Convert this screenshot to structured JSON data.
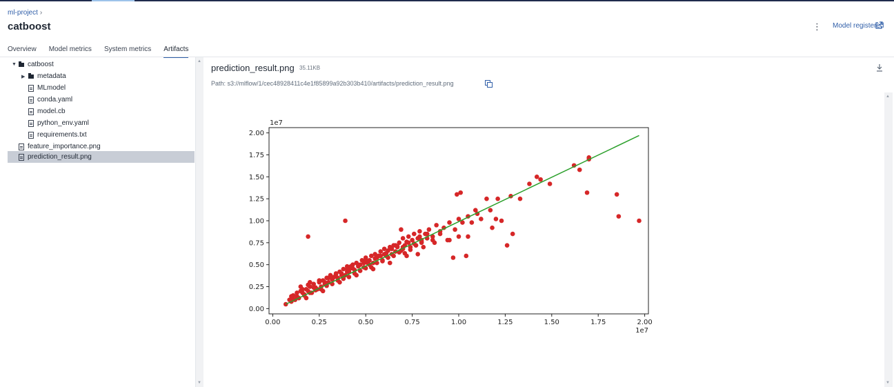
{
  "breadcrumb": {
    "project": "ml-project",
    "chevron": "›"
  },
  "page": {
    "title": "catboost"
  },
  "header": {
    "kebab": "⋮",
    "model_registered": "Model registered"
  },
  "tabs": [
    {
      "label": "Overview"
    },
    {
      "label": "Model metrics"
    },
    {
      "label": "System metrics"
    },
    {
      "label": "Artifacts",
      "active": true
    }
  ],
  "tree": {
    "root": "catboost",
    "metadata": "metadata",
    "files": [
      "MLmodel",
      "conda.yaml",
      "model.cb",
      "python_env.yaml",
      "requirements.txt"
    ],
    "top_files": [
      "feature_importance.png",
      "prediction_result.png"
    ],
    "selected": "prediction_result.png"
  },
  "viewer": {
    "file_name": "prediction_result.png",
    "file_size": "35.11KB",
    "path": "Path: s3://mlflow/1/cec48928411c4e1f85899a92b303b410/artifacts/prediction_result.png"
  },
  "colors": {
    "accent": "#2f5ea8",
    "point": "#d62728",
    "line": "#2ca02c"
  },
  "chart_data": {
    "type": "scatter",
    "title": "",
    "xlabel": "",
    "ylabel": "",
    "x_offset_label": "1e7",
    "y_offset_label": "1e7",
    "xlim": [
      -0.02,
      2.02
    ],
    "ylim": [
      -0.06,
      2.06
    ],
    "xticks": [
      "0.00",
      "0.25",
      "0.50",
      "0.75",
      "1.00",
      "1.25",
      "1.50",
      "1.75",
      "2.00"
    ],
    "yticks": [
      "0.00",
      "0.25",
      "0.50",
      "0.75",
      "1.00",
      "1.25",
      "1.50",
      "1.75",
      "2.00"
    ],
    "line": {
      "x": [
        0.07,
        1.97
      ],
      "y": [
        0.05,
        1.97
      ]
    },
    "points": {
      "x": [
        0.07,
        0.09,
        0.1,
        0.11,
        0.12,
        0.13,
        0.14,
        0.15,
        0.16,
        0.17,
        0.18,
        0.19,
        0.2,
        0.21,
        0.22,
        0.23,
        0.24,
        0.25,
        0.26,
        0.27,
        0.28,
        0.29,
        0.3,
        0.31,
        0.32,
        0.33,
        0.34,
        0.35,
        0.36,
        0.37,
        0.38,
        0.39,
        0.4,
        0.41,
        0.42,
        0.43,
        0.44,
        0.45,
        0.46,
        0.47,
        0.48,
        0.49,
        0.5,
        0.51,
        0.52,
        0.53,
        0.54,
        0.55,
        0.56,
        0.57,
        0.58,
        0.59,
        0.6,
        0.61,
        0.62,
        0.63,
        0.64,
        0.65,
        0.66,
        0.67,
        0.68,
        0.69,
        0.7,
        0.71,
        0.72,
        0.73,
        0.74,
        0.75,
        0.76,
        0.77,
        0.78,
        0.79,
        0.8,
        0.82,
        0.84,
        0.86,
        0.88,
        0.9,
        0.92,
        0.95,
        0.98,
        1.0,
        1.02,
        1.05,
        0.1,
        0.13,
        0.16,
        0.19,
        0.22,
        0.25,
        0.28,
        0.31,
        0.34,
        0.37,
        0.4,
        0.43,
        0.46,
        0.49,
        0.52,
        0.55,
        0.58,
        0.61,
        0.64,
        0.67,
        0.7,
        0.73,
        0.76,
        0.79,
        0.11,
        0.14,
        0.17,
        0.2,
        0.23,
        0.26,
        0.29,
        0.32,
        0.35,
        0.38,
        0.41,
        0.44,
        0.47,
        0.5,
        0.53,
        0.56,
        0.59,
        0.62,
        0.65,
        0.68,
        0.71,
        0.74,
        0.77,
        0.8,
        0.83,
        0.86,
        0.18,
        0.27,
        0.36,
        0.45,
        0.54,
        0.63,
        0.72,
        0.81,
        0.2,
        0.3,
        0.4,
        0.5,
        0.6,
        0.7,
        0.8,
        0.9,
        0.15,
        0.33,
        0.42,
        0.57,
        0.66,
        0.83,
        0.78,
        0.87,
        0.94,
        0.97,
        0.99,
        1.01,
        1.05,
        1.07,
        1.09,
        1.1,
        1.12,
        1.15,
        1.17,
        1.2,
        1.21,
        1.23,
        1.26,
        1.28,
        1.33,
        1.38,
        1.42,
        1.44,
        1.49,
        1.62,
        1.65,
        1.69,
        1.7,
        1.7,
        1.85,
        1.86,
        1.97,
        1.29,
        1.18,
        0.69,
        1.0,
        0.19,
        0.39,
        0.95,
        1.04
      ],
      "y": [
        0.05,
        0.1,
        0.08,
        0.15,
        0.1,
        0.14,
        0.12,
        0.2,
        0.18,
        0.15,
        0.22,
        0.2,
        0.25,
        0.18,
        0.28,
        0.24,
        0.22,
        0.3,
        0.25,
        0.32,
        0.28,
        0.35,
        0.3,
        0.38,
        0.33,
        0.36,
        0.4,
        0.35,
        0.42,
        0.4,
        0.45,
        0.38,
        0.48,
        0.42,
        0.46,
        0.5,
        0.44,
        0.52,
        0.48,
        0.5,
        0.55,
        0.47,
        0.58,
        0.52,
        0.55,
        0.6,
        0.52,
        0.62,
        0.58,
        0.6,
        0.65,
        0.55,
        0.68,
        0.6,
        0.66,
        0.7,
        0.62,
        0.72,
        0.65,
        0.7,
        0.75,
        0.66,
        0.8,
        0.72,
        0.76,
        0.82,
        0.7,
        0.78,
        0.85,
        0.72,
        0.8,
        0.88,
        0.75,
        0.85,
        0.9,
        0.82,
        0.95,
        0.88,
        0.92,
        0.98,
        0.9,
        1.02,
        0.98,
        1.05,
        0.14,
        0.18,
        0.22,
        0.27,
        0.24,
        0.32,
        0.3,
        0.36,
        0.39,
        0.38,
        0.45,
        0.46,
        0.49,
        0.52,
        0.5,
        0.57,
        0.6,
        0.63,
        0.68,
        0.71,
        0.68,
        0.75,
        0.74,
        0.82,
        0.11,
        0.12,
        0.16,
        0.18,
        0.21,
        0.22,
        0.26,
        0.28,
        0.32,
        0.34,
        0.36,
        0.4,
        0.43,
        0.46,
        0.47,
        0.52,
        0.54,
        0.58,
        0.6,
        0.64,
        0.63,
        0.67,
        0.72,
        0.76,
        0.8,
        0.78,
        0.12,
        0.2,
        0.3,
        0.38,
        0.45,
        0.52,
        0.6,
        0.7,
        0.3,
        0.35,
        0.42,
        0.55,
        0.62,
        0.7,
        0.78,
        0.85,
        0.25,
        0.36,
        0.48,
        0.6,
        0.72,
        0.85,
        0.62,
        0.75,
        0.78,
        0.58,
        1.3,
        1.32,
        0.82,
        0.98,
        1.12,
        1.08,
        1.02,
        1.25,
        1.12,
        1.02,
        1.25,
        1.0,
        0.72,
        1.28,
        1.25,
        1.42,
        1.5,
        1.47,
        1.42,
        1.63,
        1.58,
        1.32,
        1.7,
        1.72,
        1.3,
        1.05,
        1.0,
        0.85,
        0.92,
        0.9,
        0.82,
        0.82,
        1.0,
        0.78,
        0.6
      ]
    }
  }
}
